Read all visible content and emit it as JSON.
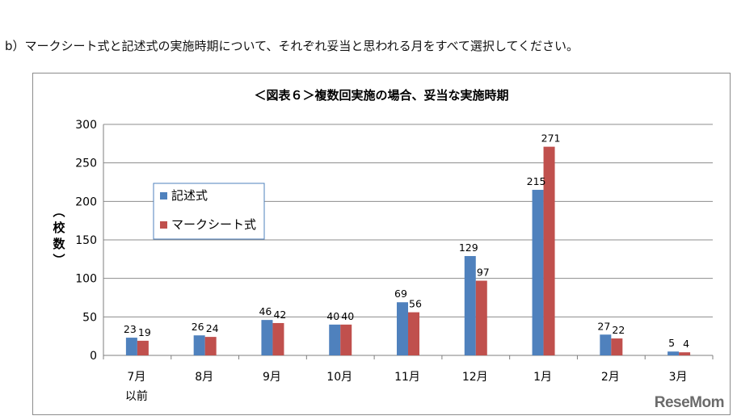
{
  "question": "b）マークシート式と記述式の実施時期について、それぞれ妥当と思われる月をすべて選択してください。",
  "watermark": "ReseMom",
  "chart_data": {
    "type": "bar",
    "title": "＜図表６＞複数回実施の場合、妥当な実施時期",
    "ylabel": "（校数）",
    "xlabel": "",
    "ylim": [
      0,
      300
    ],
    "yticks": [
      0,
      50,
      100,
      150,
      200,
      250,
      300
    ],
    "grid": true,
    "legend_position": "upper-left",
    "categories": [
      "7月\n以前",
      "8月",
      "9月",
      "10月",
      "11月",
      "12月",
      "1月",
      "2月",
      "3月"
    ],
    "series": [
      {
        "name": "記述式",
        "color": "#4f81bd",
        "values": [
          23,
          26,
          46,
          40,
          69,
          129,
          215,
          27,
          5
        ]
      },
      {
        "name": "マークシート式",
        "color": "#c0504d",
        "values": [
          19,
          24,
          42,
          40,
          56,
          97,
          271,
          22,
          4
        ]
      }
    ]
  }
}
